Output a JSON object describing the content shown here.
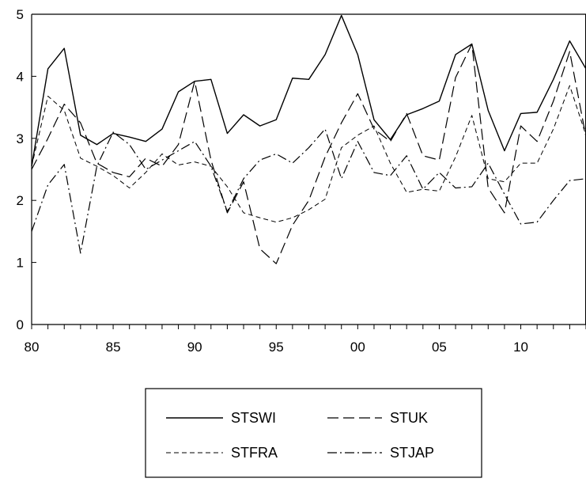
{
  "chart_data": {
    "type": "line",
    "title": "",
    "xlabel": "",
    "ylabel": "",
    "x_start": 1980,
    "x_end": 2014,
    "xlim": [
      1980,
      2014
    ],
    "ylim": [
      0,
      5
    ],
    "y_ticks": [
      0,
      1,
      2,
      3,
      4,
      5
    ],
    "x_tick_values": [
      1980,
      1985,
      1990,
      1995,
      2000,
      2005,
      2010
    ],
    "x_tick_labels": [
      "80",
      "85",
      "90",
      "95",
      "00",
      "05",
      "10"
    ],
    "grid": false,
    "legend_position": "bottom",
    "series": [
      {
        "name": "STSWI",
        "dash": "solid",
        "values": [
          2.55,
          4.12,
          4.45,
          3.05,
          2.9,
          3.08,
          3.02,
          2.95,
          3.15,
          3.75,
          3.92,
          3.95,
          3.08,
          3.38,
          3.2,
          3.3,
          3.97,
          3.95,
          4.35,
          4.98,
          4.35,
          3.3,
          2.98,
          3.38,
          3.48,
          3.6,
          4.35,
          4.52,
          3.45,
          2.8,
          3.4,
          3.42,
          3.95,
          4.57,
          4.12
        ]
      },
      {
        "name": "STUK",
        "dash": "long",
        "values": [
          2.5,
          3.0,
          3.55,
          3.25,
          2.6,
          2.45,
          2.38,
          2.68,
          2.55,
          2.9,
          3.92,
          2.65,
          1.8,
          2.3,
          1.22,
          0.98,
          1.6,
          2.0,
          2.7,
          3.25,
          3.72,
          3.15,
          2.95,
          3.4,
          2.72,
          2.65,
          3.98,
          4.52,
          2.2,
          1.8,
          3.2,
          2.95,
          3.6,
          4.4,
          3.02
        ]
      },
      {
        "name": "STFRA",
        "dash": "medium",
        "values": [
          2.55,
          3.68,
          3.45,
          2.68,
          2.55,
          2.4,
          2.2,
          2.45,
          2.75,
          2.57,
          2.62,
          2.55,
          2.22,
          1.8,
          1.72,
          1.65,
          1.72,
          1.85,
          2.02,
          2.85,
          3.05,
          3.2,
          2.6,
          2.13,
          2.18,
          2.15,
          2.7,
          3.37,
          2.35,
          2.3,
          2.6,
          2.6,
          3.15,
          3.85,
          3.05
        ]
      },
      {
        "name": "STJAP",
        "dash": "dashdot",
        "values": [
          1.5,
          2.25,
          2.58,
          1.15,
          2.55,
          3.1,
          2.9,
          2.5,
          2.65,
          2.8,
          2.95,
          2.55,
          1.82,
          2.35,
          2.65,
          2.75,
          2.6,
          2.85,
          3.15,
          2.35,
          2.95,
          2.45,
          2.4,
          2.72,
          2.18,
          2.45,
          2.2,
          2.22,
          2.6,
          2.1,
          1.62,
          1.65,
          2.0,
          2.32,
          2.35
        ]
      }
    ]
  },
  "legend": {
    "entries": [
      "STSWI",
      "STUK",
      "STFRA",
      "STJAP"
    ]
  }
}
